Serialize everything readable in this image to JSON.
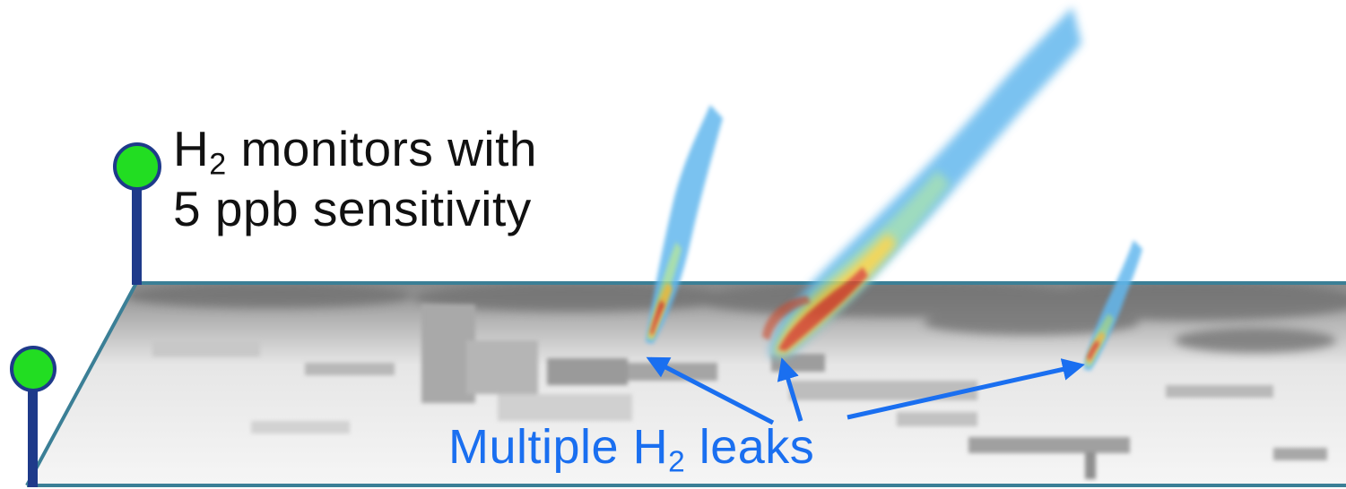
{
  "monitors": {
    "line1_prefix": "H",
    "line1_sub": "2",
    "line1_suffix": " monitors with",
    "line2": "5 ppb sensitivity",
    "pin_head_color": "#22dd22",
    "pin_stem_color": "#1e3a8a"
  },
  "leaks": {
    "prefix": "Multiple H",
    "sub": "2",
    "suffix": " leaks",
    "color": "#1a6ff0"
  },
  "plate": {
    "edge_color": "#3b7f96"
  },
  "plumes": [
    "plume-left",
    "plume-center",
    "plume-right"
  ]
}
